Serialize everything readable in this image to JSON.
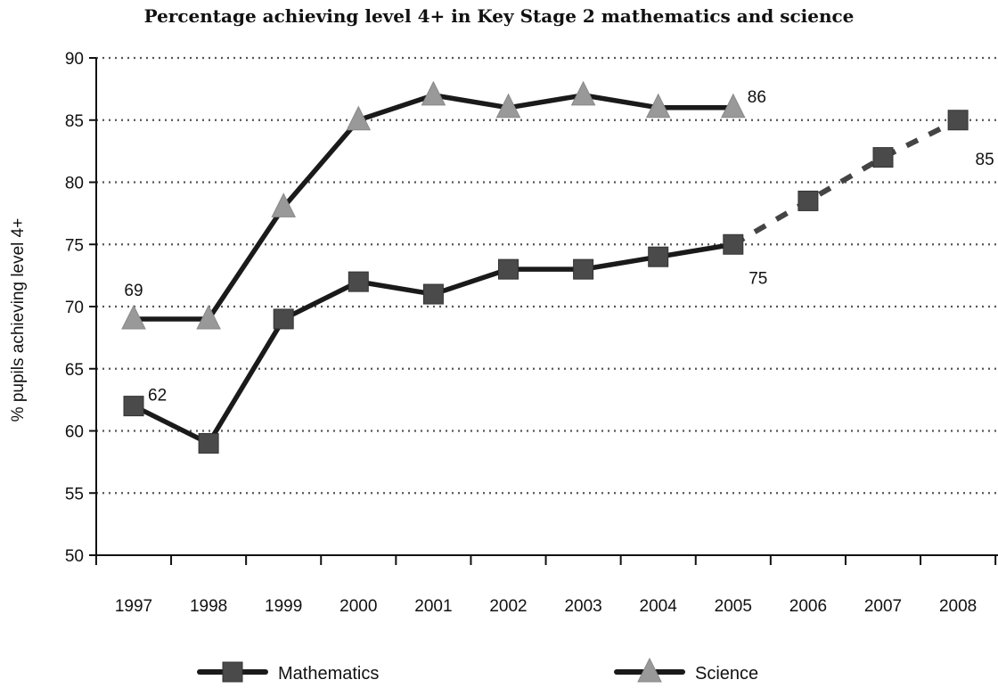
{
  "chart_data": {
    "type": "line",
    "title": "Percentage achieving level 4+  in Key Stage 2 mathematics and science",
    "xlabel": "",
    "ylabel": "% pupils achieving level 4+",
    "ylim": [
      50,
      90
    ],
    "yticks": [
      "50",
      "55",
      "60",
      "65",
      "70",
      "75",
      "80",
      "85",
      "90"
    ],
    "categories": [
      "1997",
      "1998",
      "1999",
      "2000",
      "2001",
      "2002",
      "2003",
      "2004",
      "2005",
      "2006",
      "2007",
      "2008"
    ],
    "grid": "horizontal dotted",
    "legend_position": "bottom",
    "series": [
      {
        "name": "Mathematics",
        "marker": "square",
        "values": [
          62,
          59,
          69,
          72,
          71,
          73,
          73,
          74,
          75,
          78.5,
          82,
          85
        ],
        "solid_until_index": 8,
        "dashed_from_index": 8,
        "color": "#1a1a1a",
        "marker_color": "#4a4a4a"
      },
      {
        "name": "Science",
        "marker": "triangle",
        "values": [
          69,
          69,
          78,
          85,
          87,
          86,
          87,
          86,
          86,
          null,
          null,
          null
        ],
        "color": "#1a1a1a",
        "marker_color": "#999999"
      }
    ],
    "annotations": [
      {
        "series": 0,
        "index": 0,
        "text": "62",
        "pos": "right-up"
      },
      {
        "series": 0,
        "index": 8,
        "text": "75",
        "pos": "below"
      },
      {
        "series": 0,
        "index": 11,
        "text": "85",
        "pos": "below-right"
      },
      {
        "series": 1,
        "index": 0,
        "text": "69",
        "pos": "above"
      },
      {
        "series": 1,
        "index": 8,
        "text": "86",
        "pos": "right-up"
      }
    ]
  }
}
